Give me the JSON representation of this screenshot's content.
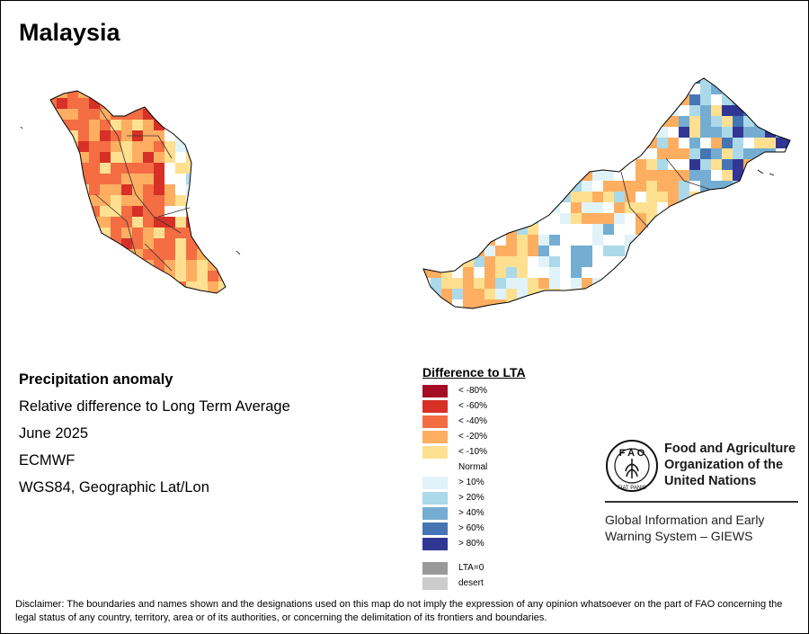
{
  "title": "Malaysia",
  "info": {
    "heading": "Precipitation anomaly",
    "line1": "Relative difference to Long Term Average",
    "line2": "June 2025",
    "line3": "ECMWF",
    "line4": "WGS84, Geographic Lat/Lon"
  },
  "legend": {
    "title": "Difference to LTA",
    "items": [
      {
        "label": "< -80%",
        "color": "#a50f26"
      },
      {
        "label": "< -60%",
        "color": "#d73027"
      },
      {
        "label": "< -40%",
        "color": "#f46d43"
      },
      {
        "label": "< -20%",
        "color": "#fdae61"
      },
      {
        "label": "< -10%",
        "color": "#fee090"
      },
      {
        "label": "Normal",
        "color": "#ffffff"
      },
      {
        "label": "> 10%",
        "color": "#e0f3f8"
      },
      {
        "label": "> 20%",
        "color": "#abd9e9"
      },
      {
        "label": "> 40%",
        "color": "#74add1"
      },
      {
        "label": "> 60%",
        "color": "#4575b4"
      },
      {
        "label": "> 80%",
        "color": "#313695"
      },
      {
        "label": "LTA=0",
        "color": "#999999"
      },
      {
        "label": "desert",
        "color": "#cccccc"
      }
    ]
  },
  "map": {
    "regions": [
      "Peninsular Malaysia",
      "Sarawak and Sabah (Borneo)"
    ],
    "dominant_anomaly_peninsula": "< -40%",
    "dominant_anomaly_borneo_east": "> 60%"
  },
  "fao": {
    "emblem_text": "FAO",
    "emblem_motto": "FIAT PANIS",
    "name_line1": "Food and Agriculture",
    "name_line2": "Organization of the",
    "name_line3": "United Nations",
    "giews_line1": "Global Information and Early",
    "giews_line2": "Warning System – GIEWS"
  },
  "disclaimer": "Disclaimer: The boundaries and names shown and the designations used on this map do not imply the expression of any opinion whatsoever on the part of FAO concerning the legal status of any country, territory, area or of its authorities, or concerning the delimitation of its frontiers and boundaries."
}
